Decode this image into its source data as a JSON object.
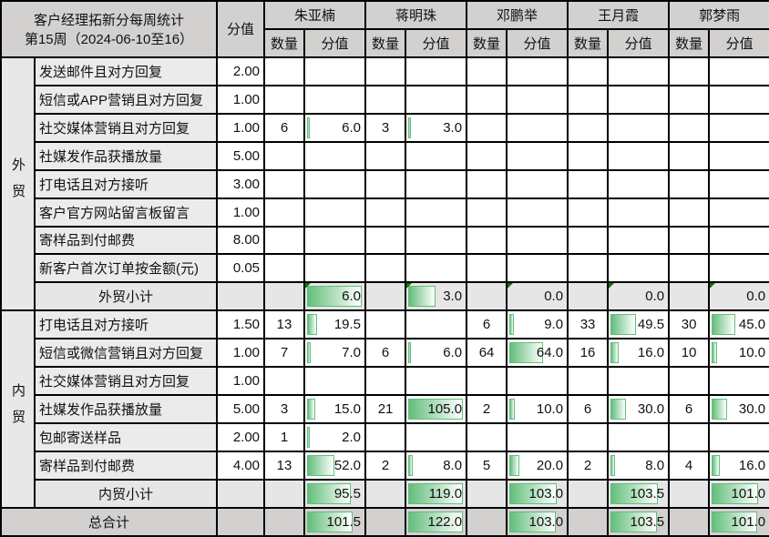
{
  "title": "客户经理拓新分每周统计",
  "subtitle": "第15周（2024-06-10至16）",
  "score_header": "分值",
  "count_header": "数量",
  "value_header": "分值",
  "people": [
    "朱亚楠",
    "蒋明珠",
    "邓鹏举",
    "王月霞",
    "郭梦雨"
  ],
  "bar_color": "#63be7b",
  "groups": [
    {
      "label": "外贸",
      "subtotal_label": "外贸小计",
      "rows": [
        {
          "item": "发送邮件且对方回复",
          "score": "2.00",
          "cells": [
            [
              "",
              ""
            ],
            [
              "",
              ""
            ],
            [
              "",
              ""
            ],
            [
              "",
              ""
            ],
            [
              "",
              ""
            ]
          ]
        },
        {
          "item": "短信或APP营销且对方回复",
          "score": "1.00",
          "cells": [
            [
              "",
              ""
            ],
            [
              "",
              ""
            ],
            [
              "",
              ""
            ],
            [
              "",
              ""
            ],
            [
              "",
              ""
            ]
          ]
        },
        {
          "item": "社交媒体营销且对方回复",
          "score": "1.00",
          "cells": [
            [
              "6",
              "6.0"
            ],
            [
              "3",
              "3.0"
            ],
            [
              "",
              ""
            ],
            [
              "",
              ""
            ],
            [
              "",
              ""
            ]
          ]
        },
        {
          "item": "社媒发作品获播放量",
          "score": "5.00",
          "cells": [
            [
              "",
              ""
            ],
            [
              "",
              ""
            ],
            [
              "",
              ""
            ],
            [
              "",
              ""
            ],
            [
              "",
              ""
            ]
          ]
        },
        {
          "item": "打电话且对方接听",
          "score": "3.00",
          "cells": [
            [
              "",
              ""
            ],
            [
              "",
              ""
            ],
            [
              "",
              ""
            ],
            [
              "",
              ""
            ],
            [
              "",
              ""
            ]
          ]
        },
        {
          "item": "客户官方网站留言板留言",
          "score": "1.00",
          "cells": [
            [
              "",
              ""
            ],
            [
              "",
              ""
            ],
            [
              "",
              ""
            ],
            [
              "",
              ""
            ],
            [
              "",
              ""
            ]
          ]
        },
        {
          "item": "寄样品到付邮费",
          "score": "8.00",
          "cells": [
            [
              "",
              ""
            ],
            [
              "",
              ""
            ],
            [
              "",
              ""
            ],
            [
              "",
              ""
            ],
            [
              "",
              ""
            ]
          ]
        },
        {
          "item": "新客户首次订单按金额(元)",
          "score": "0.05",
          "cells": [
            [
              "",
              ""
            ],
            [
              "",
              ""
            ],
            [
              "",
              ""
            ],
            [
              "",
              ""
            ],
            [
              "",
              ""
            ]
          ]
        }
      ],
      "subtotals": [
        "6.0",
        "3.0",
        "0.0",
        "0.0",
        "0.0"
      ]
    },
    {
      "label": "内贸",
      "subtotal_label": "内贸小计",
      "rows": [
        {
          "item": "打电话且对方接听",
          "score": "1.50",
          "cells": [
            [
              "13",
              "19.5"
            ],
            [
              "",
              ""
            ],
            [
              "6",
              "9.0"
            ],
            [
              "33",
              "49.5"
            ],
            [
              "30",
              "45.0"
            ]
          ]
        },
        {
          "item": "短信或微信营销且对方回复",
          "score": "1.00",
          "cells": [
            [
              "7",
              "7.0"
            ],
            [
              "6",
              "6.0"
            ],
            [
              "64",
              "64.0"
            ],
            [
              "16",
              "16.0"
            ],
            [
              "10",
              "10.0"
            ]
          ]
        },
        {
          "item": "社交媒体营销且对方回复",
          "score": "1.00",
          "cells": [
            [
              "",
              ""
            ],
            [
              "",
              ""
            ],
            [
              "",
              ""
            ],
            [
              "",
              ""
            ],
            [
              "",
              ""
            ]
          ]
        },
        {
          "item": "社媒发作品获播放量",
          "score": "5.00",
          "cells": [
            [
              "3",
              "15.0"
            ],
            [
              "21",
              "105.0"
            ],
            [
              "2",
              "10.0"
            ],
            [
              "6",
              "30.0"
            ],
            [
              "6",
              "30.0"
            ]
          ]
        },
        {
          "item": "包邮寄送样品",
          "score": "2.00",
          "cells": [
            [
              "1",
              "2.0"
            ],
            [
              "",
              ""
            ],
            [
              "",
              ""
            ],
            [
              "",
              ""
            ],
            [
              "",
              ""
            ]
          ]
        },
        {
          "item": "寄样品到付邮费",
          "score": "4.00",
          "cells": [
            [
              "13",
              "52.0"
            ],
            [
              "2",
              "8.0"
            ],
            [
              "5",
              "20.0"
            ],
            [
              "2",
              "8.0"
            ],
            [
              "4",
              "16.0"
            ]
          ]
        }
      ],
      "subtotals": [
        "95.5",
        "119.0",
        "103.0",
        "103.5",
        "101.0"
      ]
    }
  ],
  "total_label": "总合计",
  "totals": [
    "101.5",
    "122.0",
    "103.0",
    "103.5",
    "101.0"
  ]
}
